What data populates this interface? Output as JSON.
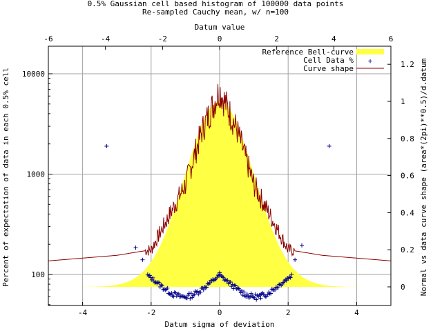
{
  "chart_data": {
    "type": "area",
    "title_line1": "0.5% Gaussian cell based histogram of 100000 data points",
    "title_line2": "Re-sampled Cauchy mean, w/ n=100",
    "xlabel_bottom": "Datum sigma of deviation",
    "xlabel_top": "Datum value",
    "ylabel_left": "Percent of expectation of data in each 0.5% cell",
    "ylabel_right": "Normal vs data curve shape (area*(2pi)**0.5)/d.datum",
    "x_bottom": {
      "min": -5,
      "max": 5,
      "ticks": [
        -4,
        -2,
        0,
        2,
        4
      ],
      "tick_labels": [
        "-4",
        "-2",
        "0",
        "2",
        "4"
      ]
    },
    "x_top": {
      "min": -6,
      "max": 6,
      "ticks": [
        -6,
        -4,
        -2,
        0,
        2,
        4,
        6
      ],
      "tick_labels": [
        "-6",
        "-4",
        "-2",
        "0",
        "2",
        "4",
        "6"
      ]
    },
    "y_left": {
      "scale": "log",
      "ticks": [
        100,
        1000,
        10000
      ],
      "tick_labels": [
        "100",
        "1000",
        "10000"
      ]
    },
    "y_right": {
      "min": -0.05,
      "max": 1.33,
      "ticks": [
        0,
        0.2,
        0.4,
        0.6,
        0.8,
        1,
        1.2
      ],
      "tick_labels": [
        "0",
        "0.2",
        "0.4",
        "0.6",
        "0.8",
        "1",
        "1.2"
      ]
    },
    "grid": true,
    "legend_position": "top-right",
    "series": [
      {
        "name": "Reference Bell-curve",
        "kind": "filled-area",
        "color": "#ffff44"
      },
      {
        "name": "Cell Data %",
        "kind": "points",
        "color": "#00008b",
        "marker": "+"
      },
      {
        "name": "Curve shape",
        "kind": "line",
        "color": "#8b0000"
      }
    ],
    "cell_data_points": [
      {
        "x": -3.3,
        "y": 1900
      },
      {
        "x": 3.2,
        "y": 1900
      },
      {
        "x": -2.45,
        "y": 185
      },
      {
        "x": 2.4,
        "y": 195
      },
      {
        "x": -2.25,
        "y": 140
      },
      {
        "x": 2.2,
        "y": 140
      },
      {
        "x": 0,
        "y": 104
      },
      {
        "x": 1.2,
        "y": 58
      }
    ],
    "curve_shape_points": [
      {
        "x": -5,
        "y": 0.14
      },
      {
        "x": -3,
        "y": 0.17
      },
      {
        "x": -2,
        "y": 0.2
      },
      {
        "x": -1,
        "y": 0.55
      },
      {
        "x": -0.5,
        "y": 0.85
      },
      {
        "x": 0,
        "y": 1.06
      },
      {
        "x": 0.5,
        "y": 0.85
      },
      {
        "x": 1,
        "y": 0.55
      },
      {
        "x": 2,
        "y": 0.2
      },
      {
        "x": 3,
        "y": 0.17
      },
      {
        "x": 5,
        "y": 0.14
      }
    ],
    "reference_bell_curve_peak": 1.0
  }
}
